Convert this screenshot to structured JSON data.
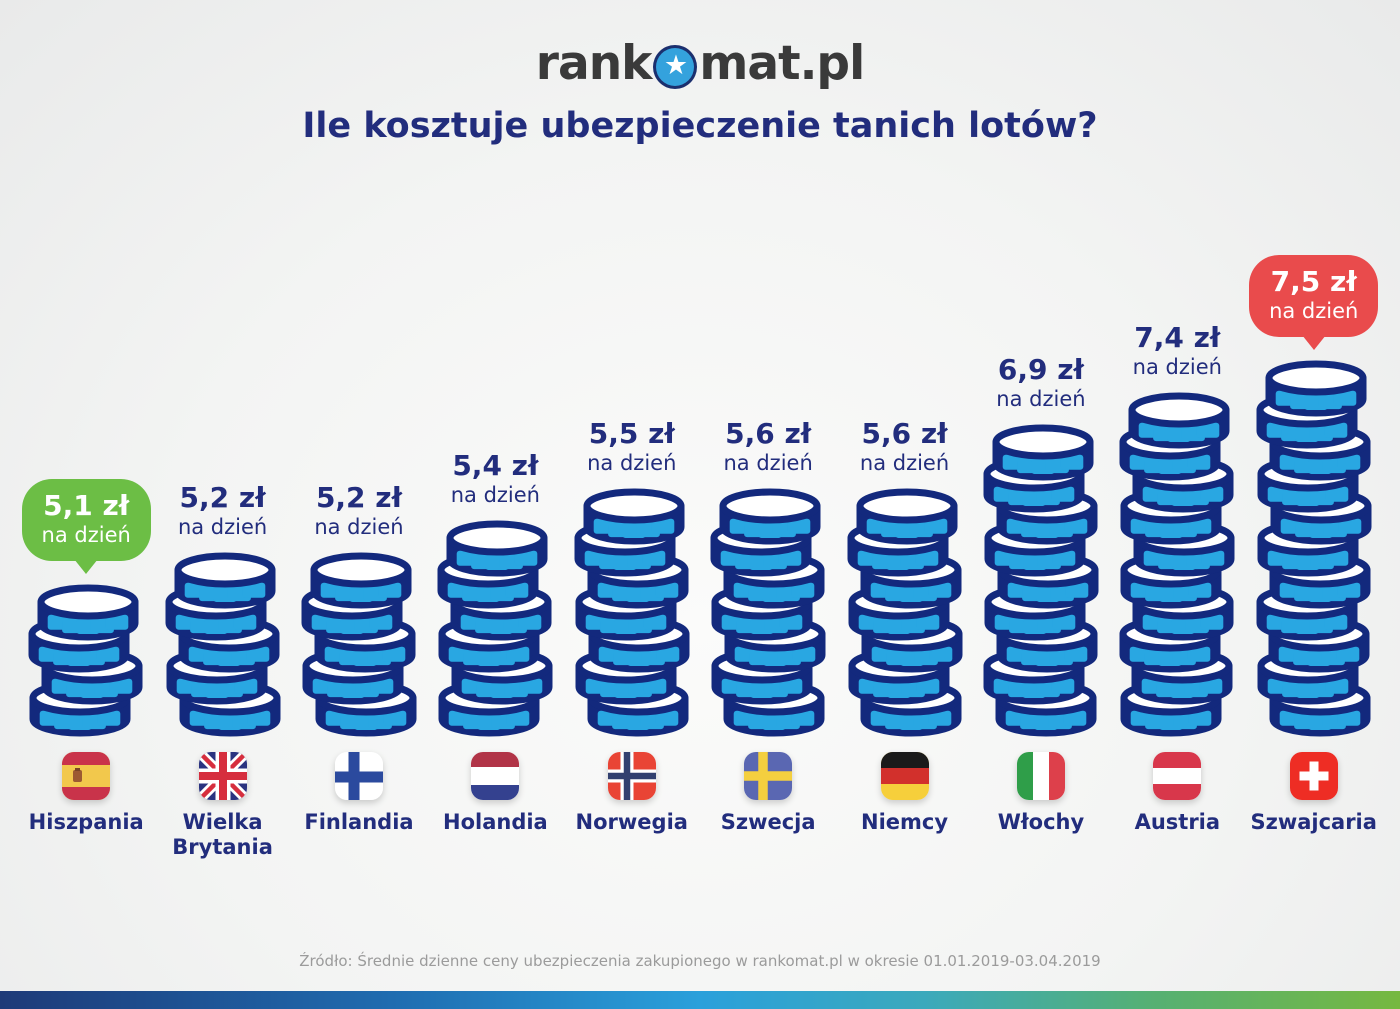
{
  "logo": {
    "prefix": "rank",
    "suffix": "mat.pl",
    "star_glyph": "★"
  },
  "title": "Ile kosztuje ubezpieczenie tanich lotów?",
  "labels": {
    "per_day": "na dzień"
  },
  "source": "Źródło: Średnie dzienne ceny ubezpieczenia zakupionego w rankomat.pl w okresie 01.01.2019-03.04.2019",
  "colors": {
    "coin_outline": "#13297d",
    "coin_fill": "#29a7e2",
    "coin_top": "#ffffff",
    "text_navy": "#222d7d",
    "bubble_min_green": "#6cbe45",
    "bubble_max_red": "#e94b4c"
  },
  "countries": [
    {
      "name": "Hiszpania",
      "value_label": "5,1 zł"
    },
    {
      "name": "Wielka Brytania",
      "value_label": "5,2 zł"
    },
    {
      "name": "Finlandia",
      "value_label": "5,2 zł"
    },
    {
      "name": "Holandia",
      "value_label": "5,4 zł"
    },
    {
      "name": "Norwegia",
      "value_label": "5,5 zł"
    },
    {
      "name": "Szwecja",
      "value_label": "5,6 zł"
    },
    {
      "name": "Niemcy",
      "value_label": "5,6 zł"
    },
    {
      "name": "Włochy",
      "value_label": "6,9 zł"
    },
    {
      "name": "Austria",
      "value_label": "7,4 zł"
    },
    {
      "name": "Szwajcaria",
      "value_label": "7,5 zł"
    }
  ],
  "chart_data": {
    "type": "bar",
    "title": "Ile kosztuje ubezpieczenie tanich lotów?",
    "unit": "zł na dzień",
    "categories": [
      "Hiszpania",
      "Wielka Brytania",
      "Finlandia",
      "Holandia",
      "Norwegia",
      "Szwecja",
      "Niemcy",
      "Włochy",
      "Austria",
      "Szwajcaria"
    ],
    "values": [
      5.1,
      5.2,
      5.2,
      5.4,
      5.5,
      5.6,
      5.6,
      6.9,
      7.4,
      7.5
    ],
    "value_labels": [
      "5,1 zł",
      "5,2 zł",
      "5,2 zł",
      "5,4 zł",
      "5,5 zł",
      "5,6 zł",
      "5,6 zł",
      "6,9 zł",
      "7,4 zł",
      "7,5 zł"
    ],
    "sublabel": "na dzień",
    "coin_counts": [
      4,
      5,
      5,
      6,
      7,
      7,
      7,
      9,
      10,
      11
    ],
    "min_highlight": {
      "index": 0,
      "label": "5,1 zł",
      "color": "#6cbe45"
    },
    "max_highlight": {
      "index": 9,
      "label": "7,5 zł",
      "color": "#e94b4c"
    },
    "source": "Źródło: Średnie dzienne ceny ubezpieczenia zakupionego w rankomat.pl w okresie 01.01.2019-03.04.2019"
  }
}
